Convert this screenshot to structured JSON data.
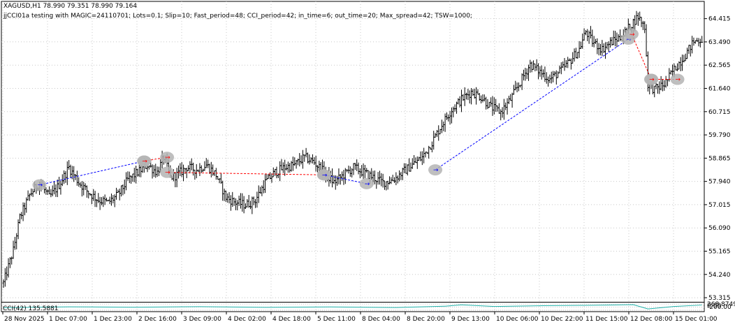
{
  "header": {
    "symbol_line": "XAGUSD,H1  78.990 79.351 78.990 79.164",
    "ea_line": "jjCCI01a testing with MAGIC=24110701; Lots=0.1; Slip=10; Fast_period=48; CCI_period=42; in_time=6; out_time=20; Max_spread=42; TSW=1000;"
  },
  "indicator": {
    "label": "CCI(42) 135.5881",
    "right_labels": [
      "268.8749",
      "0.00",
      "-200.00"
    ]
  },
  "colors": {
    "background": "#ffffff",
    "candles": "#000000",
    "grid": "#c8c8c8",
    "trade_buy_line": "#0000ff",
    "trade_sell_line": "#ff0000",
    "marker_halo": "#b4b4b4",
    "cci_line": "#20b2aa"
  },
  "chart_data": {
    "type": "ohlc",
    "symbol": "XAGUSD",
    "timeframe": "H1",
    "ylim": [
      53.15,
      65.1
    ],
    "y_ticks": [
      "64.415",
      "63.490",
      "62.565",
      "61.640",
      "60.715",
      "59.790",
      "58.865",
      "57.940",
      "57.015",
      "56.090",
      "55.165",
      "54.240",
      "53.315"
    ],
    "x_ticks": [
      "28 Nov 2025",
      "1 Dec 07:00",
      "1 Dec 23:00",
      "2 Dec 16:00",
      "3 Dec 09:00",
      "4 Dec 02:00",
      "4 Dec 18:00",
      "5 Dec 11:00",
      "8 Dec 04:00",
      "8 Dec 20:00",
      "9 Dec 13:00",
      "10 Dec 06:00",
      "10 Dec 22:00",
      "11 Dec 15:00",
      "12 Dec 08:00",
      "15 Dec 01:00"
    ],
    "close_path": [
      [
        0,
        53.9
      ],
      [
        6,
        55.2
      ],
      [
        10,
        56.5
      ],
      [
        16,
        57.4
      ],
      [
        22,
        57.9
      ],
      [
        28,
        57.3
      ],
      [
        34,
        57.8
      ],
      [
        40,
        58.5
      ],
      [
        46,
        57.9
      ],
      [
        52,
        57.5
      ],
      [
        58,
        57.2
      ],
      [
        64,
        57.1
      ],
      [
        70,
        57.4
      ],
      [
        76,
        58.0
      ],
      [
        82,
        58.3
      ],
      [
        88,
        58.6
      ],
      [
        94,
        58.3
      ],
      [
        98,
        58.9
      ],
      [
        102,
        58.1
      ],
      [
        106,
        58.2
      ],
      [
        112,
        58.5
      ],
      [
        118,
        58.4
      ],
      [
        124,
        58.6
      ],
      [
        130,
        58.2
      ],
      [
        136,
        57.3
      ],
      [
        142,
        57.1
      ],
      [
        148,
        57.0
      ],
      [
        154,
        57.2
      ],
      [
        160,
        57.9
      ],
      [
        166,
        58.3
      ],
      [
        172,
        58.5
      ],
      [
        178,
        58.6
      ],
      [
        184,
        58.9
      ],
      [
        190,
        58.7
      ],
      [
        196,
        58.3
      ],
      [
        202,
        57.9
      ],
      [
        208,
        58.2
      ],
      [
        214,
        58.5
      ],
      [
        220,
        58.3
      ],
      [
        226,
        58.1
      ],
      [
        232,
        57.9
      ],
      [
        238,
        58.0
      ],
      [
        244,
        58.3
      ],
      [
        250,
        58.6
      ],
      [
        256,
        58.9
      ],
      [
        262,
        59.5
      ],
      [
        268,
        60.2
      ],
      [
        274,
        60.8
      ],
      [
        280,
        61.2
      ],
      [
        286,
        61.5
      ],
      [
        292,
        61.3
      ],
      [
        298,
        60.9
      ],
      [
        304,
        60.7
      ],
      [
        310,
        61.2
      ],
      [
        316,
        61.9
      ],
      [
        322,
        62.6
      ],
      [
        328,
        62.3
      ],
      [
        334,
        62.0
      ],
      [
        340,
        62.3
      ],
      [
        346,
        62.7
      ],
      [
        352,
        63.2
      ],
      [
        356,
        63.9
      ],
      [
        360,
        63.5
      ],
      [
        366,
        63.2
      ],
      [
        372,
        63.5
      ],
      [
        378,
        63.7
      ],
      [
        384,
        64.2
      ],
      [
        388,
        64.5
      ],
      [
        392,
        64.1
      ],
      [
        394,
        61.8
      ],
      [
        398,
        61.6
      ],
      [
        404,
        61.8
      ],
      [
        410,
        62.4
      ],
      [
        416,
        62.9
      ],
      [
        422,
        63.5
      ],
      [
        427,
        63.6
      ]
    ],
    "trades": [
      {
        "side": "buy",
        "open": [
          22,
          57.8
        ],
        "close": [
          86,
          58.75
        ]
      },
      {
        "side": "sell",
        "open": [
          86,
          58.75
        ],
        "close": [
          100,
          58.9
        ]
      },
      {
        "side": "sell",
        "open": [
          100,
          58.3
        ],
        "close": [
          196,
          58.2
        ]
      },
      {
        "side": "buy",
        "open": [
          196,
          58.2
        ],
        "close": [
          222,
          57.85
        ]
      },
      {
        "side": "buy",
        "open": [
          264,
          58.4
        ],
        "close": [
          382,
          63.6
        ]
      },
      {
        "side": "sell",
        "open": [
          384,
          63.8
        ],
        "close": [
          396,
          62.0
        ]
      },
      {
        "side": "sell",
        "open": [
          396,
          62.0
        ],
        "close": [
          412,
          62.0
        ]
      }
    ],
    "cci": {
      "ylim": [
        -300,
        300
      ],
      "levels": [
        200,
        0,
        -200
      ],
      "path": [
        [
          0,
          -40
        ],
        [
          40,
          20
        ],
        [
          80,
          -10
        ],
        [
          120,
          30
        ],
        [
          160,
          -20
        ],
        [
          200,
          10
        ],
        [
          240,
          -30
        ],
        [
          270,
          60
        ],
        [
          280,
          150
        ],
        [
          300,
          40
        ],
        [
          330,
          90
        ],
        [
          360,
          120
        ],
        [
          385,
          160
        ],
        [
          394,
          -120
        ],
        [
          410,
          40
        ],
        [
          427,
          135.5881
        ]
      ]
    }
  }
}
